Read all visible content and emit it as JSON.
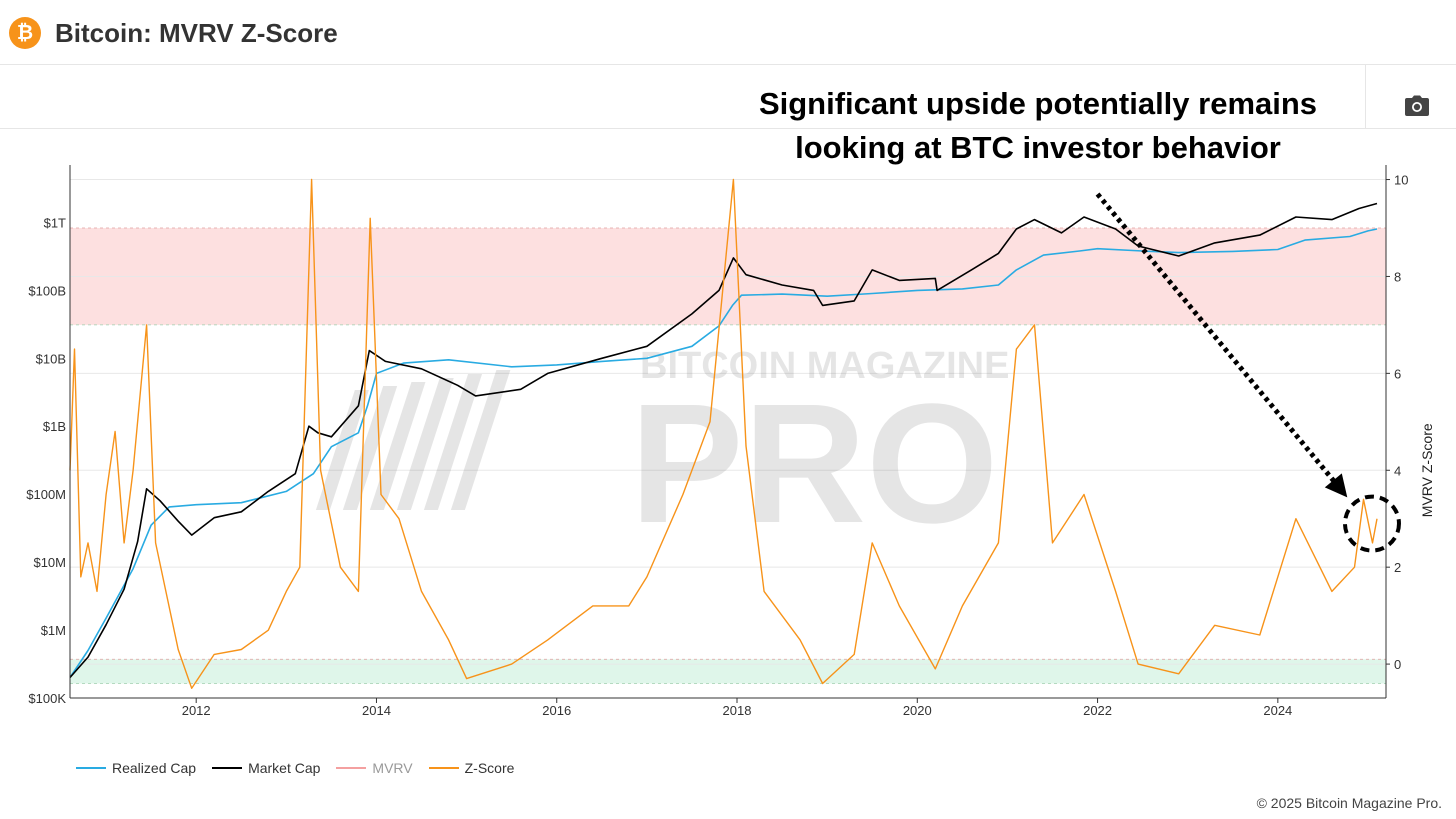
{
  "header": {
    "title": "Bitcoin: MVRV Z-Score",
    "logo_glyph": "₿"
  },
  "toolbar": {
    "camera_icon": "camera-icon"
  },
  "annotation": {
    "line1": "Significant upside potentially remains",
    "line2": "looking at BTC investor behavior"
  },
  "watermark": {
    "line1": "BITCOIN MAGAZINE",
    "line2": "PRO"
  },
  "legend": [
    {
      "label": "Realized Cap",
      "color": "#29abe2"
    },
    {
      "label": "Market Cap",
      "color": "#000000"
    },
    {
      "label": "MVRV",
      "color": "#f4a0a0"
    },
    {
      "label": "Z-Score",
      "color": "#f7931a"
    }
  ],
  "footer": {
    "copyright": "© 2025 Bitcoin Magazine Pro."
  },
  "chart_data": {
    "type": "line",
    "x_ticks": [
      "2012",
      "2014",
      "2016",
      "2018",
      "2020",
      "2022",
      "2024"
    ],
    "xlim": [
      2010.6,
      2025.2
    ],
    "y_left_ticks": [
      "$100K",
      "$1M",
      "$10M",
      "$100M",
      "$1B",
      "$10B",
      "$100B",
      "$1T"
    ],
    "y_left_scale": "log",
    "y_left_lim": [
      100000,
      7000000000000
    ],
    "y_right_label": "MVRV Z-Score",
    "y_right_ticks": [
      "0",
      "2",
      "4",
      "6",
      "8",
      "10"
    ],
    "y_right_lim": [
      -0.7,
      10.3
    ],
    "bands": [
      {
        "axis": "right",
        "from": 7.0,
        "to": 9.0,
        "color": "#fde0e0"
      },
      {
        "axis": "right",
        "from": -0.4,
        "to": 0.1,
        "color": "#dff6ea"
      }
    ],
    "series": [
      {
        "name": "Realized Cap",
        "axis": "left",
        "color": "#29abe2",
        "points": [
          [
            2010.6,
            200000
          ],
          [
            2010.8,
            500000
          ],
          [
            2011.0,
            1500000
          ],
          [
            2011.3,
            8000000
          ],
          [
            2011.5,
            35000000
          ],
          [
            2011.7,
            65000000
          ],
          [
            2012.0,
            70000000
          ],
          [
            2012.5,
            75000000
          ],
          [
            2013.0,
            110000000
          ],
          [
            2013.3,
            200000000
          ],
          [
            2013.5,
            500000000
          ],
          [
            2013.8,
            800000000
          ],
          [
            2013.9,
            2000000000
          ],
          [
            2014.0,
            6000000000
          ],
          [
            2014.3,
            8500000000
          ],
          [
            2014.8,
            9500000000
          ],
          [
            2015.5,
            7500000000
          ],
          [
            2016.0,
            8000000000
          ],
          [
            2016.5,
            9000000000
          ],
          [
            2017.0,
            10000000000
          ],
          [
            2017.5,
            15000000000
          ],
          [
            2017.8,
            30000000000
          ],
          [
            2017.95,
            60000000000
          ],
          [
            2018.05,
            85000000000
          ],
          [
            2018.5,
            88000000000
          ],
          [
            2019.0,
            82000000000
          ],
          [
            2019.5,
            90000000000
          ],
          [
            2020.0,
            100000000000
          ],
          [
            2020.5,
            105000000000
          ],
          [
            2020.9,
            120000000000
          ],
          [
            2021.1,
            200000000000
          ],
          [
            2021.4,
            330000000000
          ],
          [
            2021.8,
            380000000000
          ],
          [
            2022.0,
            410000000000
          ],
          [
            2022.5,
            380000000000
          ],
          [
            2022.9,
            360000000000
          ],
          [
            2023.5,
            375000000000
          ],
          [
            2024.0,
            400000000000
          ],
          [
            2024.3,
            550000000000
          ],
          [
            2024.8,
            620000000000
          ],
          [
            2025.0,
            750000000000
          ],
          [
            2025.1,
            800000000000
          ]
        ]
      },
      {
        "name": "Market Cap",
        "axis": "left",
        "color": "#000000",
        "points": [
          [
            2010.6,
            200000
          ],
          [
            2010.8,
            400000
          ],
          [
            2011.0,
            1200000
          ],
          [
            2011.2,
            4000000
          ],
          [
            2011.35,
            20000000
          ],
          [
            2011.45,
            120000000
          ],
          [
            2011.6,
            80000000
          ],
          [
            2011.8,
            40000000
          ],
          [
            2011.95,
            25000000
          ],
          [
            2012.2,
            45000000
          ],
          [
            2012.5,
            55000000
          ],
          [
            2012.8,
            110000000
          ],
          [
            2013.1,
            200000000
          ],
          [
            2013.25,
            1000000000
          ],
          [
            2013.35,
            800000000
          ],
          [
            2013.5,
            700000000
          ],
          [
            2013.8,
            2000000000
          ],
          [
            2013.92,
            13000000000
          ],
          [
            2014.1,
            9000000000
          ],
          [
            2014.5,
            7000000000
          ],
          [
            2014.9,
            4000000000
          ],
          [
            2015.1,
            2800000000
          ],
          [
            2015.6,
            3500000000
          ],
          [
            2015.9,
            6000000000
          ],
          [
            2016.5,
            10000000000
          ],
          [
            2017.0,
            15000000000
          ],
          [
            2017.5,
            45000000000
          ],
          [
            2017.8,
            100000000000
          ],
          [
            2017.96,
            300000000000
          ],
          [
            2018.1,
            170000000000
          ],
          [
            2018.5,
            120000000000
          ],
          [
            2018.85,
            100000000000
          ],
          [
            2018.95,
            60000000000
          ],
          [
            2019.3,
            70000000000
          ],
          [
            2019.5,
            200000000000
          ],
          [
            2019.8,
            140000000000
          ],
          [
            2020.2,
            150000000000
          ],
          [
            2020.22,
            100000000000
          ],
          [
            2020.6,
            200000000000
          ],
          [
            2020.9,
            350000000000
          ],
          [
            2021.1,
            800000000000
          ],
          [
            2021.3,
            1100000000000
          ],
          [
            2021.6,
            700000000000
          ],
          [
            2021.85,
            1200000000000
          ],
          [
            2022.2,
            800000000000
          ],
          [
            2022.45,
            450000000000
          ],
          [
            2022.9,
            320000000000
          ],
          [
            2023.3,
            500000000000
          ],
          [
            2023.8,
            650000000000
          ],
          [
            2024.2,
            1200000000000
          ],
          [
            2024.6,
            1100000000000
          ],
          [
            2024.9,
            1600000000000
          ],
          [
            2025.1,
            1900000000000
          ]
        ]
      },
      {
        "name": "Z-Score",
        "axis": "right",
        "color": "#f7931a",
        "points": [
          [
            2010.6,
            4.0
          ],
          [
            2010.65,
            6.5
          ],
          [
            2010.72,
            1.8
          ],
          [
            2010.8,
            2.5
          ],
          [
            2010.9,
            1.5
          ],
          [
            2011.0,
            3.5
          ],
          [
            2011.1,
            4.8
          ],
          [
            2011.2,
            2.5
          ],
          [
            2011.3,
            4.0
          ],
          [
            2011.45,
            7.0
          ],
          [
            2011.55,
            2.5
          ],
          [
            2011.8,
            0.3
          ],
          [
            2011.95,
            -0.5
          ],
          [
            2012.2,
            0.2
          ],
          [
            2012.5,
            0.3
          ],
          [
            2012.8,
            0.7
          ],
          [
            2013.0,
            1.5
          ],
          [
            2013.15,
            2.0
          ],
          [
            2013.28,
            10.0
          ],
          [
            2013.38,
            4.0
          ],
          [
            2013.6,
            2.0
          ],
          [
            2013.8,
            1.5
          ],
          [
            2013.93,
            9.2
          ],
          [
            2014.05,
            3.5
          ],
          [
            2014.25,
            3.0
          ],
          [
            2014.5,
            1.5
          ],
          [
            2014.8,
            0.5
          ],
          [
            2015.0,
            -0.3
          ],
          [
            2015.5,
            0.0
          ],
          [
            2015.9,
            0.5
          ],
          [
            2016.4,
            1.2
          ],
          [
            2016.8,
            1.2
          ],
          [
            2017.0,
            1.8
          ],
          [
            2017.4,
            3.5
          ],
          [
            2017.7,
            5.0
          ],
          [
            2017.96,
            10.0
          ],
          [
            2018.1,
            4.5
          ],
          [
            2018.3,
            1.5
          ],
          [
            2018.7,
            0.5
          ],
          [
            2018.95,
            -0.4
          ],
          [
            2019.3,
            0.2
          ],
          [
            2019.5,
            2.5
          ],
          [
            2019.8,
            1.2
          ],
          [
            2020.2,
            -0.1
          ],
          [
            2020.5,
            1.2
          ],
          [
            2020.9,
            2.5
          ],
          [
            2021.1,
            6.5
          ],
          [
            2021.3,
            7.0
          ],
          [
            2021.5,
            2.5
          ],
          [
            2021.85,
            3.5
          ],
          [
            2022.2,
            1.5
          ],
          [
            2022.45,
            0.0
          ],
          [
            2022.9,
            -0.2
          ],
          [
            2023.3,
            0.8
          ],
          [
            2023.8,
            0.6
          ],
          [
            2024.2,
            3.0
          ],
          [
            2024.6,
            1.5
          ],
          [
            2024.85,
            2.0
          ],
          [
            2024.95,
            3.4
          ],
          [
            2025.05,
            2.5
          ],
          [
            2025.1,
            3.0
          ]
        ]
      }
    ],
    "marker": {
      "type": "dashed-circle",
      "x": 2025.0,
      "y_right": 2.9
    },
    "arrow": {
      "from": [
        2022.0,
        9.7
      ],
      "to": [
        2024.7,
        3.6
      ]
    }
  }
}
